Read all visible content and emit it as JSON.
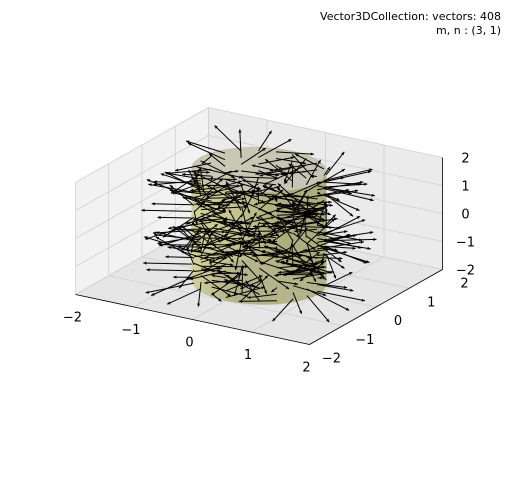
{
  "chart_data": {
    "type": "3d-quiver",
    "title": "",
    "annotation_line1": "Vector3DCollection:  vectors: 408",
    "annotation_line2": "m, n : (3, 1)",
    "vector_count": 408,
    "mode": {
      "m": 3,
      "n": 1
    },
    "surface": {
      "shape": "cylinder",
      "radius": 1,
      "z_range": [
        -2,
        2
      ],
      "color": "#a8a878"
    },
    "vector_color": "#000000",
    "xlim": [
      -2,
      2
    ],
    "ylim": [
      -2,
      2
    ],
    "zlim": [
      -2,
      2
    ],
    "x_ticks": [
      "−2",
      "−1",
      "0",
      "1",
      "2"
    ],
    "y_ticks": [
      "−2",
      "−1",
      "0",
      "1",
      "2"
    ],
    "z_ticks": [
      "−2",
      "−1",
      "0",
      "1",
      "2"
    ],
    "grid": true
  }
}
